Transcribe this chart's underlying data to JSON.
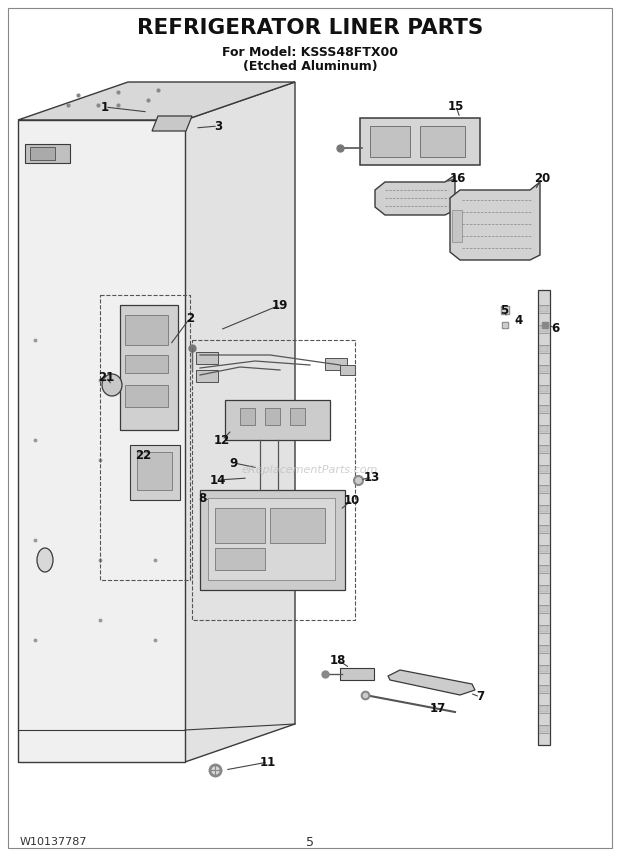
{
  "title": "REFRIGERATOR LINER PARTS",
  "subtitle1": "For Model: KSSS48FTX00",
  "subtitle2": "(Etched Aluminum)",
  "footer_left": "W10137787",
  "footer_center": "5",
  "bg_color": "#ffffff",
  "watermark": "eReplacementParts.com"
}
